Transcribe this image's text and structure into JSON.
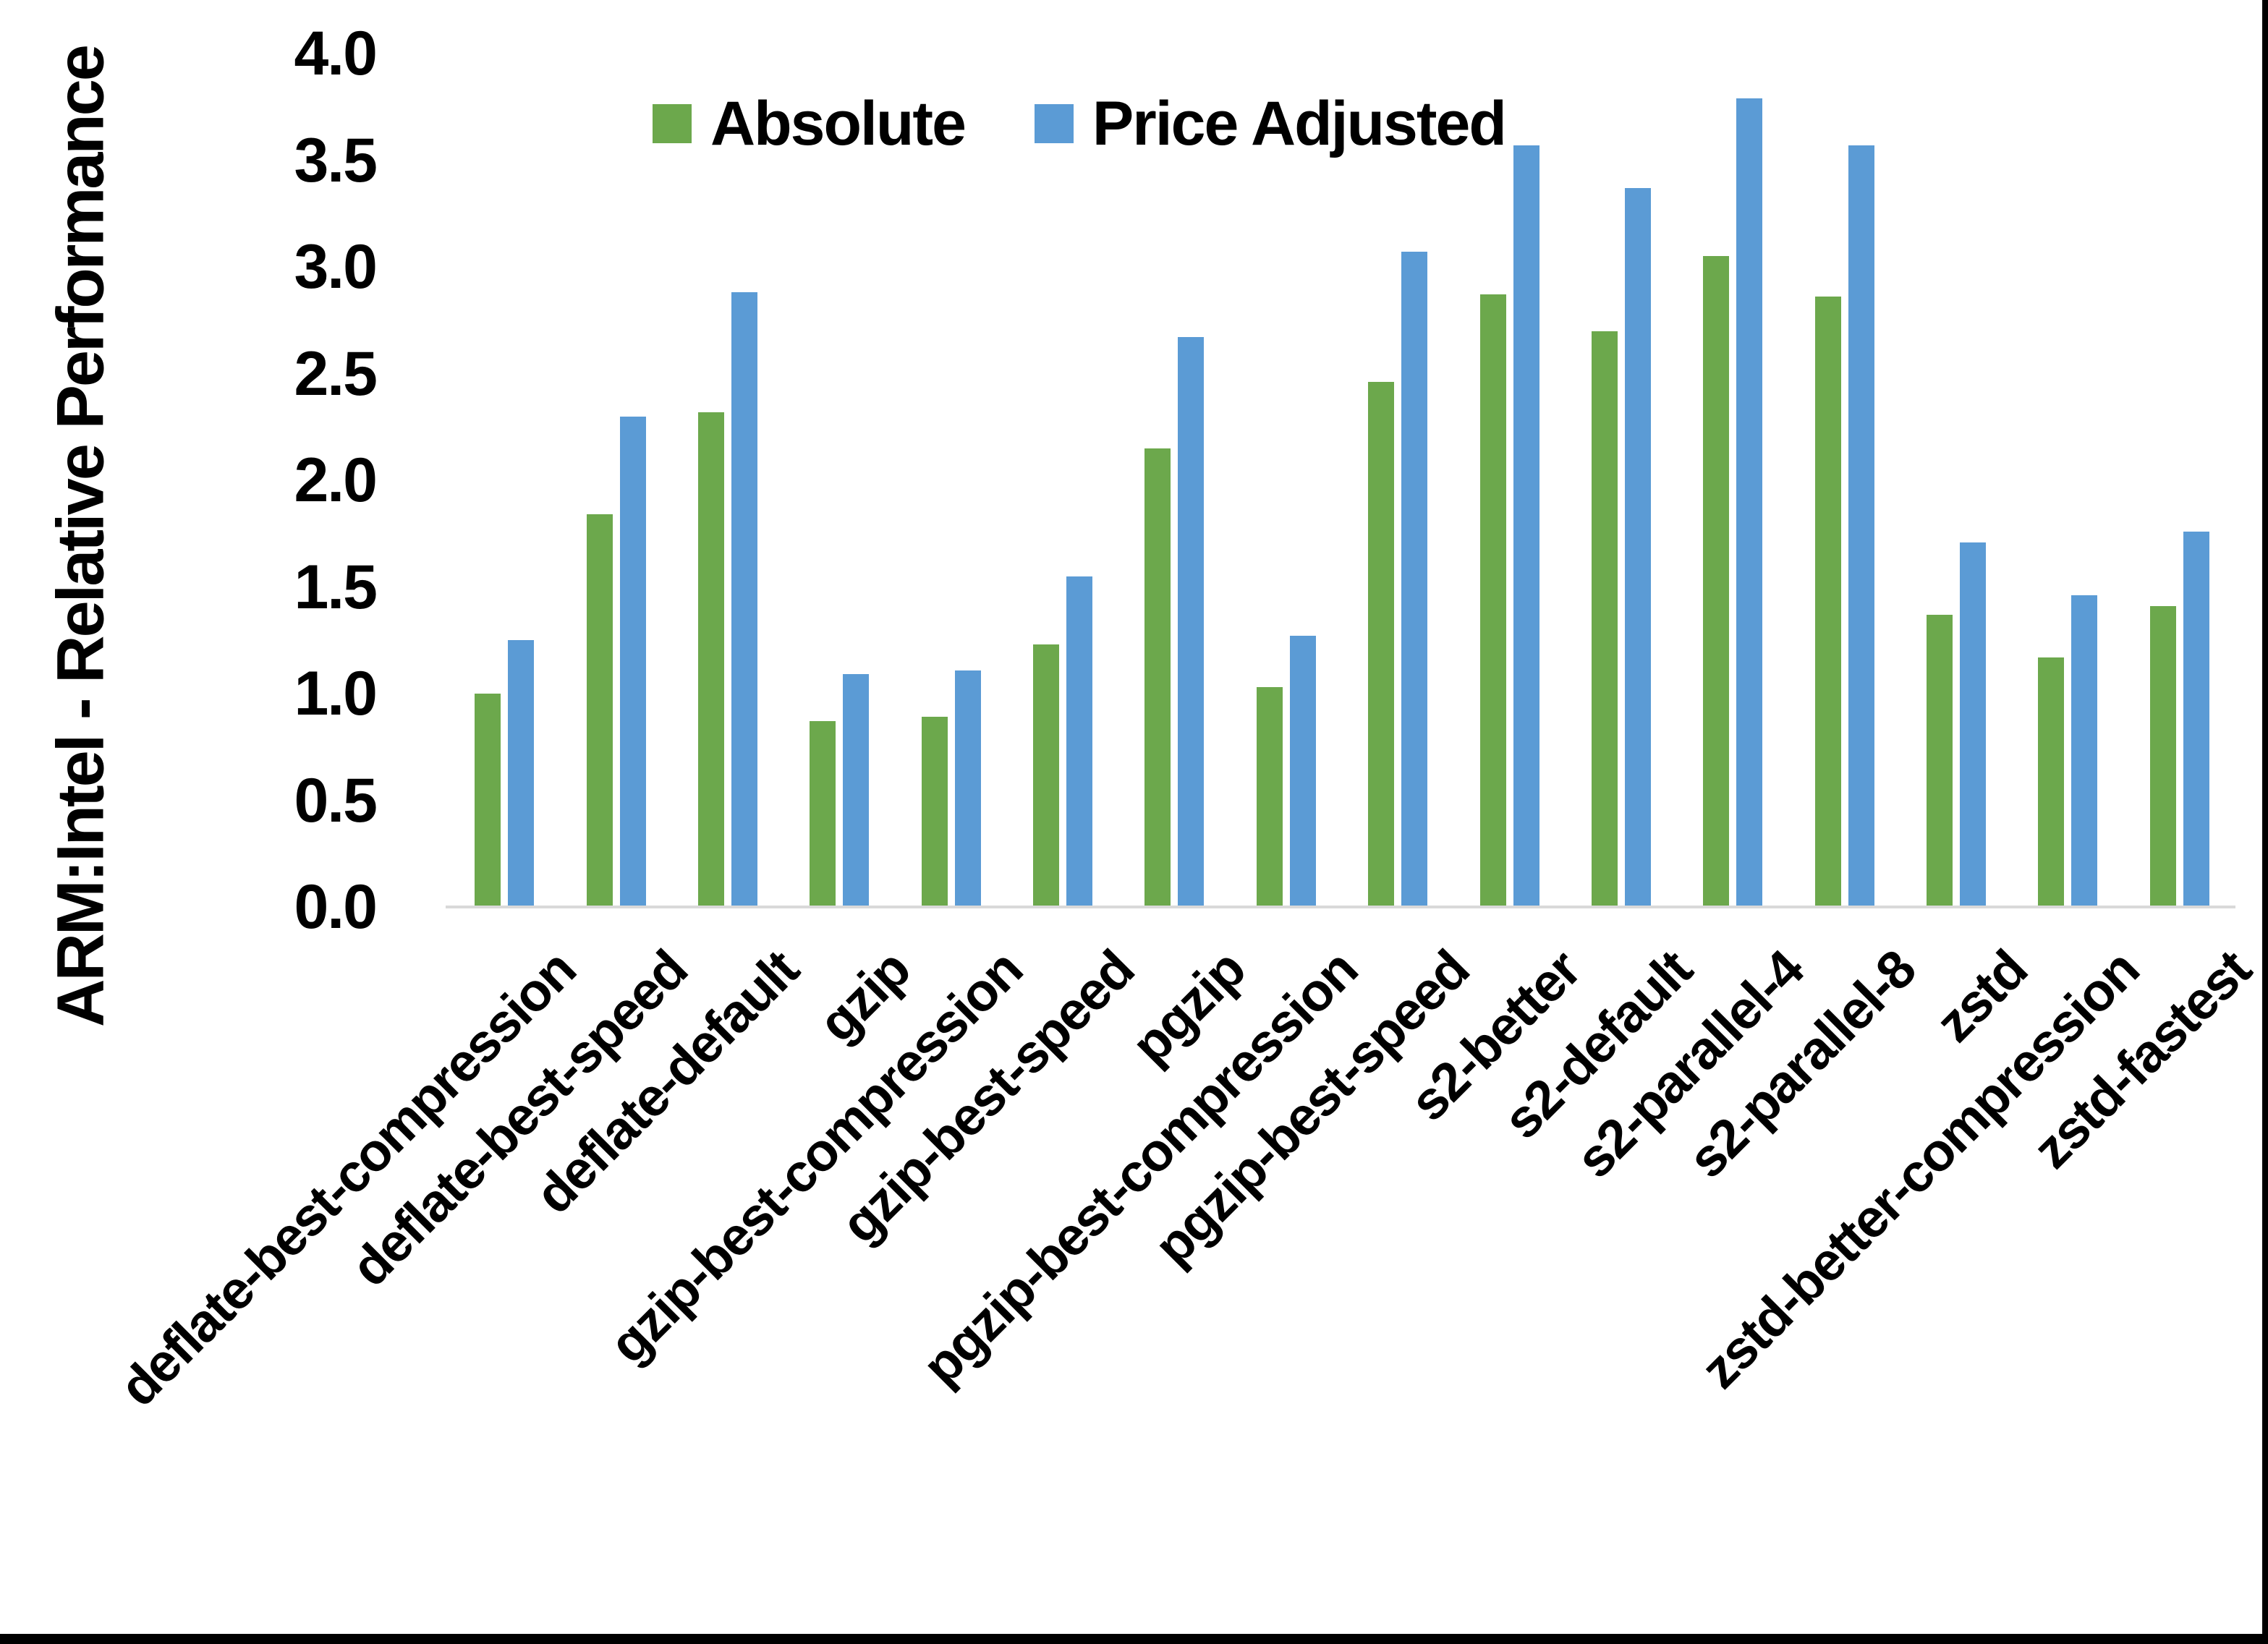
{
  "figure": {
    "background": "#ffffff",
    "edge_color": "#000000",
    "text_color": "#000000",
    "axis_line_color": "#D9D9D9"
  },
  "chart_data": {
    "type": "bar",
    "title": "",
    "xlabel": "",
    "ylabel": "ARM:Intel - Relative Performance",
    "ylim": [
      0.0,
      4.0
    ],
    "ytick_step": 0.5,
    "ytick_labels": [
      "0.0",
      "0.5",
      "1.0",
      "1.5",
      "2.0",
      "2.5",
      "3.0",
      "3.5",
      "4.0"
    ],
    "grid": false,
    "legend_position": "top-center",
    "x_label_rotation_deg": 45,
    "categories": [
      "deflate-best-compression",
      "deflate-best-speed",
      "deflate-default",
      "gzip",
      "gzip-best-compression",
      "gzip-best-speed",
      "pgzip",
      "pgzip-best-compression",
      "pgzip-best-speed",
      "s2-better",
      "s2-default",
      "s2-parallel-4",
      "s2-parallel-8",
      "zstd",
      "zstd-better-compression",
      "zstd-fastest"
    ],
    "series": [
      {
        "name": "Absolute",
        "color": "#6CA84C",
        "values": [
          1.0,
          1.84,
          2.32,
          0.87,
          0.89,
          1.23,
          2.15,
          1.03,
          2.46,
          2.87,
          2.7,
          3.05,
          2.86,
          1.37,
          1.17,
          1.41
        ]
      },
      {
        "name": "Price Adjusted",
        "color": "#5B9BD5",
        "values": [
          1.25,
          2.3,
          2.88,
          1.09,
          1.11,
          1.55,
          2.67,
          1.27,
          3.07,
          3.57,
          3.37,
          3.79,
          3.57,
          1.71,
          1.46,
          1.76
        ]
      }
    ]
  }
}
